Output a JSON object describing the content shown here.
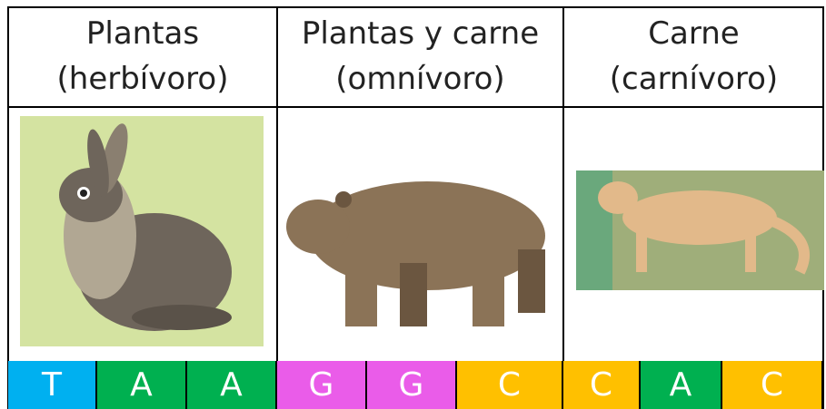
{
  "columns": [
    {
      "line1": "Plantas",
      "line2": "(herbívoro)"
    },
    {
      "line1": "Plantas y carne",
      "line2": "(omnívoro)"
    },
    {
      "line1": "Carne",
      "line2": "(carnívoro)"
    }
  ],
  "letters": [
    "T",
    "A",
    "A",
    "G",
    "G",
    "C",
    "C",
    "A",
    "C"
  ]
}
